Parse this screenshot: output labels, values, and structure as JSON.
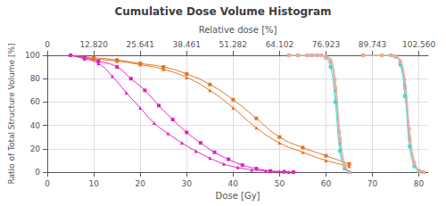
{
  "chart_data": {
    "type": "line",
    "title": "Cumulative Dose Volume Histogram",
    "xlabel": "Dose [Gy]",
    "ylabel": "Ratio of Total Structure Volume [%]",
    "x2label": "Relative dose [%]",
    "xlim": [
      0,
      82
    ],
    "xticks": [
      0,
      10,
      20,
      30,
      40,
      50,
      60,
      70,
      80
    ],
    "x2lim": [
      0,
      105.128
    ],
    "x2ticks": [
      0,
      {
        "value": 12.82,
        "label": "12.820"
      },
      {
        "value": 25.641,
        "label": "25.641"
      },
      {
        "value": 38.461,
        "label": "38.461"
      },
      {
        "value": 51.282,
        "label": "51.282"
      },
      {
        "value": 64.102,
        "label": "64.102"
      },
      {
        "value": 76.923,
        "label": "76.923"
      },
      {
        "value": 89.743,
        "label": "89.743"
      },
      {
        "value": 102.56,
        "label": "102.560"
      }
    ],
    "ylim": [
      0,
      100
    ],
    "yticks": [
      0,
      20,
      40,
      60,
      80,
      100
    ],
    "grid": true,
    "series": [
      {
        "color": "#E87020",
        "marker": "triangle",
        "x": [
          5,
          10,
          15,
          20,
          25,
          30,
          35,
          40,
          45,
          50,
          55,
          60,
          65
        ],
        "values": [
          100,
          97,
          95,
          92,
          88,
          81,
          70,
          55,
          38,
          25,
          17,
          10,
          5
        ]
      },
      {
        "color": "#E87020",
        "marker": "square",
        "x": [
          5,
          10,
          15,
          20,
          25,
          30,
          35,
          40,
          45,
          50,
          55,
          60,
          65
        ],
        "values": [
          100,
          98,
          96,
          93,
          90,
          84,
          75,
          62,
          46,
          30,
          21,
          14,
          7
        ]
      },
      {
        "color": "#E020C0",
        "marker": "triangle",
        "x": [
          5,
          8,
          11,
          14,
          17,
          20,
          23,
          26,
          29,
          32,
          35,
          38,
          41,
          44,
          47,
          50,
          52
        ],
        "values": [
          100,
          97,
          93,
          82,
          68,
          55,
          42,
          33,
          25,
          18,
          12,
          7,
          4,
          2,
          1,
          0.5,
          0
        ]
      },
      {
        "color": "#E020C0",
        "marker": "square",
        "x": [
          5,
          8,
          11,
          15,
          18,
          21,
          24,
          27,
          30,
          33,
          36,
          39,
          42,
          45,
          48,
          51,
          53
        ],
        "values": [
          100,
          98,
          95,
          90,
          80,
          70,
          57,
          45,
          34,
          25,
          17,
          11,
          6,
          3,
          1,
          0.3,
          0
        ]
      },
      {
        "color": "#40D8D8",
        "marker": "triangle",
        "x": [
          52,
          54,
          56,
          57,
          58,
          59,
          60,
          61,
          62,
          63,
          64,
          65
        ],
        "values": [
          100,
          100,
          100,
          100,
          100,
          100,
          99,
          95,
          70,
          25,
          5,
          0
        ]
      },
      {
        "color": "#40D8D8",
        "marker": "square",
        "x": [
          52,
          54,
          56,
          57,
          58,
          59,
          60,
          61,
          62,
          63,
          64,
          65
        ],
        "values": [
          100,
          100,
          100,
          100,
          100,
          100,
          98,
          90,
          60,
          18,
          3,
          0
        ]
      },
      {
        "color": "#40D8D8",
        "marker": "triangle",
        "x": [
          68,
          72,
          74,
          75,
          76,
          77,
          78,
          79,
          80,
          81
        ],
        "values": [
          100,
          100,
          100,
          99,
          95,
          75,
          30,
          8,
          2,
          0
        ]
      },
      {
        "color": "#40D8D8",
        "marker": "square",
        "x": [
          68,
          72,
          74,
          75,
          76,
          77,
          78,
          79,
          80,
          81
        ],
        "values": [
          100,
          100,
          100,
          99,
          92,
          65,
          22,
          5,
          1,
          0
        ]
      },
      {
        "color": "#F0A898",
        "marker": "triangle",
        "x": [
          52,
          54,
          56,
          57,
          58,
          59,
          60,
          61,
          62,
          63,
          64,
          65
        ],
        "values": [
          100,
          100,
          100,
          100,
          100,
          100,
          99,
          97,
          80,
          35,
          8,
          0
        ]
      },
      {
        "color": "#F0A898",
        "marker": "square",
        "x": [
          52,
          54,
          56,
          57,
          58,
          59,
          60,
          61,
          62,
          63,
          64,
          65
        ],
        "values": [
          100,
          100,
          100,
          100,
          100,
          100,
          98,
          94,
          72,
          28,
          5,
          0
        ]
      },
      {
        "color": "#F0A898",
        "marker": "triangle",
        "x": [
          68,
          72,
          74,
          75,
          76,
          77,
          78,
          79,
          80,
          81
        ],
        "values": [
          100,
          100,
          100,
          99,
          96,
          80,
          38,
          10,
          2,
          0
        ]
      },
      {
        "color": "#F0A898",
        "marker": "square",
        "x": [
          68,
          72,
          74,
          75,
          76,
          77,
          78,
          79,
          80,
          81
        ],
        "values": [
          100,
          100,
          100,
          99,
          94,
          72,
          28,
          7,
          1,
          0
        ]
      }
    ]
  }
}
